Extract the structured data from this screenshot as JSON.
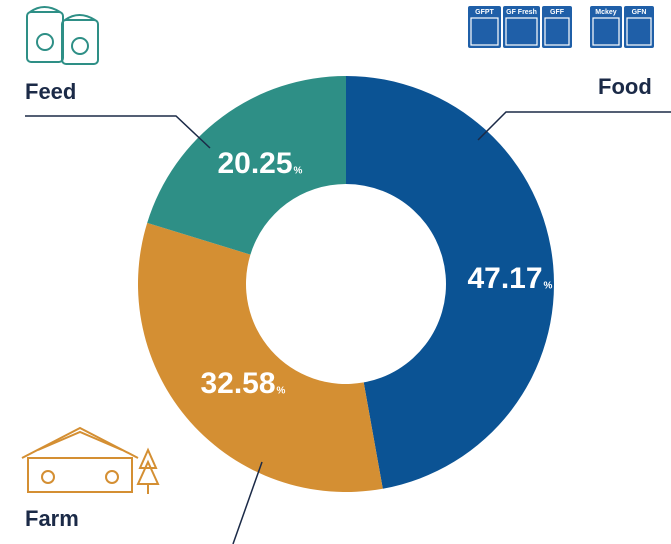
{
  "chart_data": {
    "type": "donut",
    "categories": [
      "Food",
      "Farm",
      "Feed"
    ],
    "values": [
      47.17,
      32.58,
      20.25
    ],
    "unit": "%",
    "colors": [
      "#0b5394",
      "#d48f33",
      "#2e8f86"
    ],
    "brands": [
      "GFPT",
      "GF Fresh",
      "GFF",
      "Mckey",
      "GFN"
    ]
  }
}
